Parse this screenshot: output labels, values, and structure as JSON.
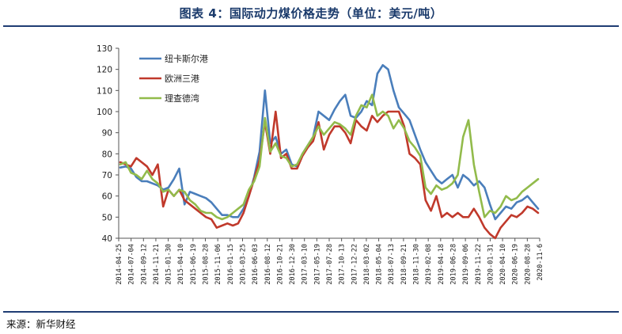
{
  "header": {
    "title": "图表 4：国际动力煤价格走势（单位：美元/吨）"
  },
  "footer": {
    "source": "来源：新华财经"
  },
  "chart_data": {
    "type": "line",
    "title": "图表 4：国际动力煤价格走势（单位：美元/吨）",
    "xlabel": "",
    "ylabel": "",
    "ylim": [
      40,
      130
    ],
    "yticks": [
      40,
      50,
      60,
      70,
      80,
      90,
      100,
      110,
      120,
      130
    ],
    "grid": false,
    "legend_position": "top-left",
    "x_tick_labels": [
      "2014-04-25",
      "2014-07-04",
      "2014-09-12",
      "2014-11-21",
      "2015-01-30",
      "2015-04-10",
      "2015-06-19",
      "2015-08-28",
      "2015-11-06",
      "2016-01-15",
      "2016-03-25",
      "2016-06-03",
      "2016-08-12",
      "2016-10-21",
      "2016-12-30",
      "2017-03-10",
      "2017-05-19",
      "2017-07-28",
      "2017-10-13",
      "2017-12-22",
      "2018-03-02",
      "2018-05-04",
      "2018-07-13",
      "2018-09-21",
      "2018-11-30",
      "2019-02-08",
      "2019-04-18",
      "2019-06-28",
      "2019-09-06",
      "2019-11-22",
      "2020-01-31",
      "2020-04-10",
      "2020-06-19",
      "2020-08-28",
      "2020-11-6"
    ],
    "series": [
      {
        "name": "纽卡斯尔港",
        "color": "#4a7ebb",
        "values": [
          73.5,
          74,
          73,
          69,
          67,
          67,
          66,
          65,
          63,
          64,
          68,
          73,
          56,
          62,
          61,
          60,
          59,
          57,
          54,
          51,
          51,
          50,
          50,
          54,
          60,
          69,
          81,
          110,
          85,
          88,
          80,
          82,
          75,
          74,
          80,
          84,
          88,
          100,
          98,
          96,
          101,
          105,
          108,
          98,
          97,
          100,
          105,
          103,
          118,
          122,
          120,
          110,
          102,
          99,
          96,
          89,
          82,
          76,
          72,
          68,
          66,
          68,
          70,
          64,
          70,
          68,
          65,
          67,
          64,
          56,
          49,
          52,
          55,
          54,
          57,
          58,
          60,
          57,
          54
        ]
      },
      {
        "name": "欧洲三港",
        "color": "#c0392b",
        "values": [
          76,
          75,
          74,
          78,
          76,
          74,
          70,
          75,
          55,
          63,
          60,
          63,
          58,
          56,
          54,
          52,
          50,
          49,
          45,
          46,
          47,
          46,
          47,
          52,
          60,
          68,
          77,
          95,
          80,
          100,
          78,
          80,
          73,
          73,
          79,
          83,
          86,
          95,
          82,
          89,
          93,
          93,
          90,
          85,
          96,
          93,
          91,
          98,
          95,
          98,
          100,
          100,
          100,
          93,
          80,
          78,
          75,
          58,
          53,
          60,
          50,
          52,
          50,
          52,
          50,
          50,
          54,
          50,
          45,
          42,
          40,
          45,
          48,
          51,
          50,
          52,
          55,
          54,
          52
        ]
      },
      {
        "name": "理查德湾",
        "color": "#92bb4b",
        "values": [
          75,
          76,
          71,
          70,
          68,
          72,
          68,
          66,
          62,
          63,
          60,
          63,
          62,
          58,
          56,
          53,
          52,
          52,
          50,
          49,
          50,
          52,
          54,
          56,
          63,
          67,
          74,
          97,
          81,
          85,
          79,
          78,
          74,
          75,
          80,
          84,
          88,
          93,
          89,
          92,
          95,
          94,
          92,
          89,
          98,
          103,
          102,
          108,
          98,
          100,
          98,
          92,
          96,
          92,
          86,
          83,
          79,
          64,
          61,
          65,
          63,
          64,
          66,
          70,
          88,
          96,
          75,
          62,
          50,
          53,
          52,
          55,
          60,
          58,
          59,
          62,
          64,
          66,
          68
        ]
      }
    ]
  }
}
